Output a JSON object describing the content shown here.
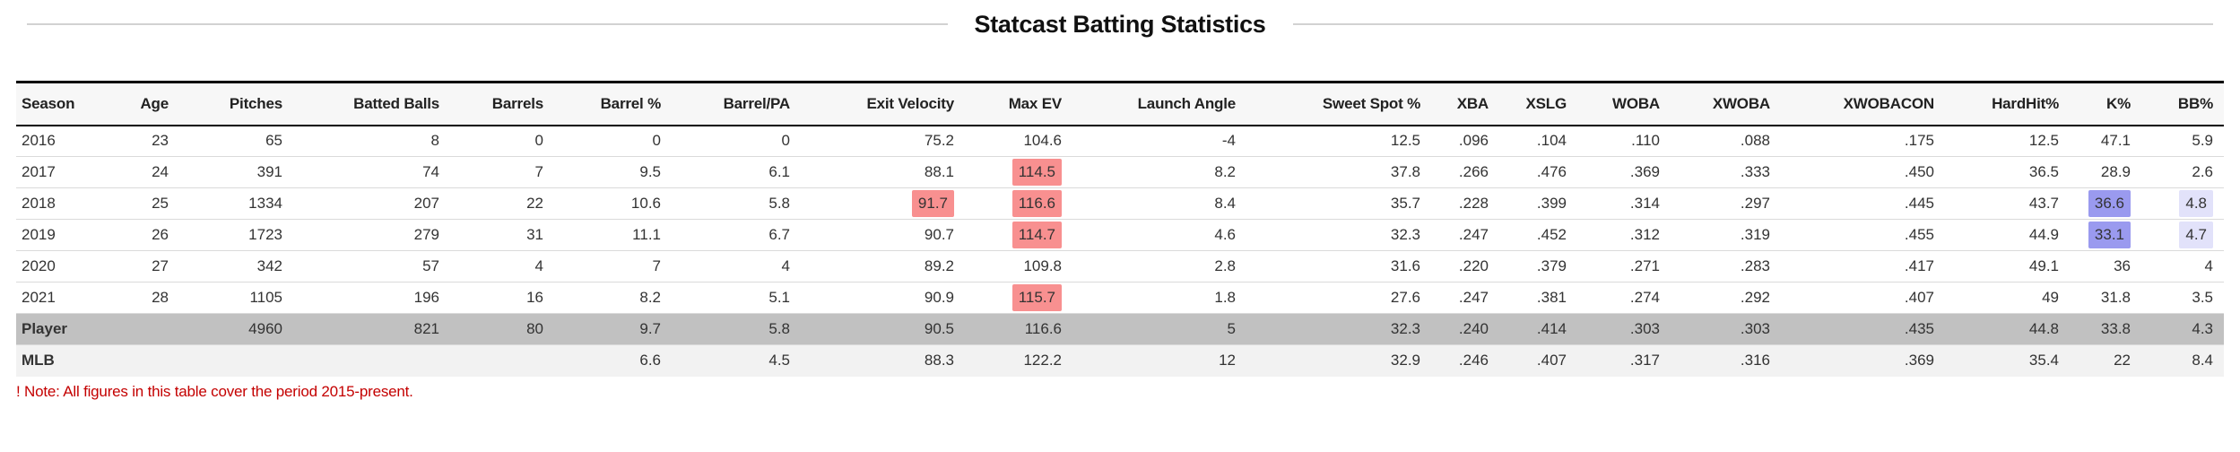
{
  "colors": {
    "highlight_red": "#f89090",
    "highlight_blue": "#9a9aef",
    "highlight_lightblue": "#e2e2fa",
    "player_row_bg": "#c1c1c1",
    "mlb_row_bg": "#f2f2f2",
    "note_red": "#c40000"
  },
  "chart_data": {
    "type": "table",
    "title": "Statcast Batting Statistics",
    "note": "! Note: All figures in this table cover the period 2015-present.",
    "columns": [
      "Season",
      "Age",
      "Pitches",
      "Batted Balls",
      "Barrels",
      "Barrel %",
      "Barrel/PA",
      "Exit Velocity",
      "Max EV",
      "Launch Angle",
      "Sweet Spot %",
      "XBA",
      "XSLG",
      "WOBA",
      "XWOBA",
      "XWOBACON",
      "HardHit%",
      "K%",
      "BB%"
    ],
    "rows": [
      {
        "cells": [
          "2016",
          "23",
          "65",
          "8",
          "0",
          "0",
          "0",
          "75.2",
          "104.6",
          "-4",
          "12.5",
          ".096",
          ".104",
          ".110",
          ".088",
          ".175",
          "12.5",
          "47.1",
          "5.9"
        ]
      },
      {
        "cells": [
          "2017",
          "24",
          "391",
          "74",
          "7",
          "9.5",
          "6.1",
          "88.1",
          "114.5",
          "8.2",
          "37.8",
          ".266",
          ".476",
          ".369",
          ".333",
          ".450",
          "36.5",
          "28.9",
          "2.6"
        ],
        "highlights": {
          "Max EV": "red"
        }
      },
      {
        "cells": [
          "2018",
          "25",
          "1334",
          "207",
          "22",
          "10.6",
          "5.8",
          "91.7",
          "116.6",
          "8.4",
          "35.7",
          ".228",
          ".399",
          ".314",
          ".297",
          ".445",
          "43.7",
          "36.6",
          "4.8"
        ],
        "highlights": {
          "Exit Velocity": "red",
          "Max EV": "red",
          "K%": "blue",
          "BB%": "lightblue"
        }
      },
      {
        "cells": [
          "2019",
          "26",
          "1723",
          "279",
          "31",
          "11.1",
          "6.7",
          "90.7",
          "114.7",
          "4.6",
          "32.3",
          ".247",
          ".452",
          ".312",
          ".319",
          ".455",
          "44.9",
          "33.1",
          "4.7"
        ],
        "highlights": {
          "Max EV": "red",
          "K%": "blue",
          "BB%": "lightblue"
        }
      },
      {
        "cells": [
          "2020",
          "27",
          "342",
          "57",
          "4",
          "7",
          "4",
          "89.2",
          "109.8",
          "2.8",
          "31.6",
          ".220",
          ".379",
          ".271",
          ".283",
          ".417",
          "49.1",
          "36",
          "4"
        ]
      },
      {
        "cells": [
          "2021",
          "28",
          "1105",
          "196",
          "16",
          "8.2",
          "5.1",
          "90.9",
          "115.7",
          "1.8",
          "27.6",
          ".247",
          ".381",
          ".274",
          ".292",
          ".407",
          "49",
          "31.8",
          "3.5"
        ],
        "highlights": {
          "Max EV": "red"
        }
      },
      {
        "cells": [
          "Player",
          "",
          "4960",
          "821",
          "80",
          "9.7",
          "5.8",
          "90.5",
          "116.6",
          "5",
          "32.3",
          ".240",
          ".414",
          ".303",
          ".303",
          ".435",
          "44.8",
          "33.8",
          "4.3"
        ],
        "style": "player"
      },
      {
        "cells": [
          "MLB",
          "",
          "",
          "",
          "",
          "6.6",
          "4.5",
          "88.3",
          "122.2",
          "12",
          "32.9",
          ".246",
          ".407",
          ".317",
          ".316",
          ".369",
          "35.4",
          "22",
          "8.4"
        ],
        "style": "mlb"
      }
    ]
  }
}
